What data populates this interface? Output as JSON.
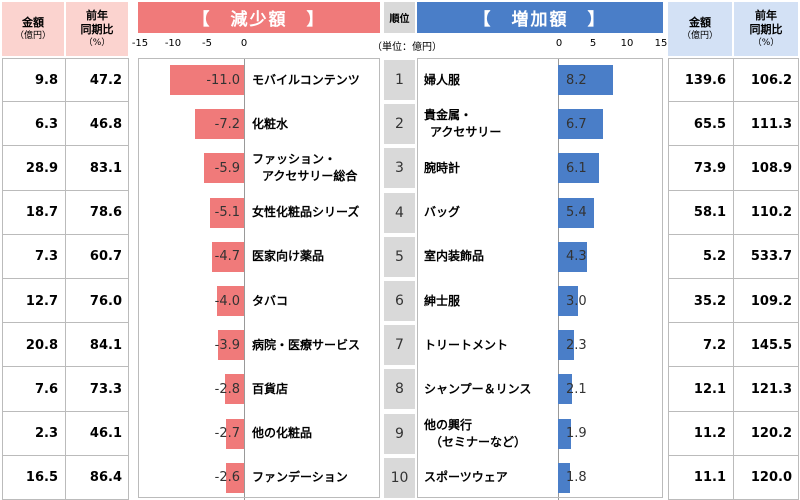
{
  "headers": {
    "amount_label": "金額",
    "amount_unit": "（億円）",
    "yoy_label_1": "前年",
    "yoy_label_2": "同期比",
    "yoy_unit": "（%）",
    "decrease_title": "【　減少額　】",
    "increase_title": "【　増加額　】",
    "rank_label": "順位",
    "unit_label": "（単位：億円）"
  },
  "chart_data": [
    {
      "type": "bar",
      "orientation": "horizontal",
      "title": "【　減少額　】",
      "xlim": [
        -15,
        0
      ],
      "ticks": [
        "-15",
        "-10",
        "-5",
        "0"
      ],
      "unit": "（単位：億円）",
      "categories": [
        "モバイルコンテンツ",
        "化粧水",
        "ファッション・アクセサリー総合",
        "女性化粧品シリーズ",
        "医家向け薬品",
        "タバコ",
        "病院・医療サービス",
        "百貨店",
        "他の化粧品",
        "ファンデーション"
      ],
      "values": [
        -11.0,
        -7.2,
        -5.9,
        -5.1,
        -4.7,
        -4.0,
        -3.9,
        -2.8,
        -2.7,
        -2.6
      ],
      "value_labels": [
        "-11.0",
        "-7.2",
        "-5.9",
        "-5.1",
        "-4.7",
        "-4.0",
        "-3.9",
        "-2.8",
        "-2.7",
        "-2.6"
      ],
      "label_lines": [
        [
          "モバイルコンテンツ"
        ],
        [
          "化粧水"
        ],
        [
          "ファッション・",
          "アクセサリー総合"
        ],
        [
          "女性化粧品シリーズ"
        ],
        [
          "医家向け薬品"
        ],
        [
          "タバコ"
        ],
        [
          "病院・医療サービス"
        ],
        [
          "百貨店"
        ],
        [
          "他の化粧品"
        ],
        [
          "ファンデーション"
        ]
      ],
      "amount": [
        "9.8",
        "6.3",
        "28.9",
        "18.7",
        "7.3",
        "12.7",
        "20.8",
        "7.6",
        "2.3",
        "16.5"
      ],
      "yoy": [
        "47.2",
        "46.8",
        "83.1",
        "78.6",
        "60.7",
        "76.0",
        "84.1",
        "73.3",
        "46.1",
        "86.4"
      ],
      "color": "#f07a7a"
    },
    {
      "type": "bar",
      "orientation": "horizontal",
      "title": "【　増加額　】",
      "xlim": [
        0,
        15
      ],
      "ticks": [
        "0",
        "5",
        "10",
        "15"
      ],
      "categories": [
        "婦人服",
        "貴金属・アクセサリー",
        "腕時計",
        "バッグ",
        "室内装飾品",
        "紳士服",
        "トリートメント",
        "シャンプー＆リンス",
        "他の興行（セミナーなど）",
        "スポーツウェア"
      ],
      "values": [
        8.2,
        6.7,
        6.1,
        5.4,
        4.3,
        3.0,
        2.3,
        2.1,
        1.9,
        1.8
      ],
      "value_labels": [
        "8.2",
        "6.7",
        "6.1",
        "5.4",
        "4.3",
        "3.0",
        "2.3",
        "2.1",
        "1.9",
        "1.8"
      ],
      "label_lines": [
        [
          "婦人服"
        ],
        [
          "貴金属・",
          "アクセサリー"
        ],
        [
          "腕時計"
        ],
        [
          "バッグ"
        ],
        [
          "室内装飾品"
        ],
        [
          "紳士服"
        ],
        [
          "トリートメント"
        ],
        [
          "シャンプー＆リンス"
        ],
        [
          "他の興行",
          "（セミナーなど）"
        ],
        [
          "スポーツウェア"
        ]
      ],
      "amount": [
        "139.6",
        "65.5",
        "73.9",
        "58.1",
        "5.2",
        "35.2",
        "7.2",
        "12.1",
        "11.2",
        "11.1"
      ],
      "yoy": [
        "106.2",
        "111.3",
        "108.9",
        "110.2",
        "533.7",
        "109.2",
        "145.5",
        "121.3",
        "120.2",
        "120.0"
      ],
      "color": "#4a7ec8"
    }
  ],
  "ranks": [
    "1",
    "2",
    "3",
    "4",
    "5",
    "6",
    "7",
    "8",
    "9",
    "10"
  ]
}
